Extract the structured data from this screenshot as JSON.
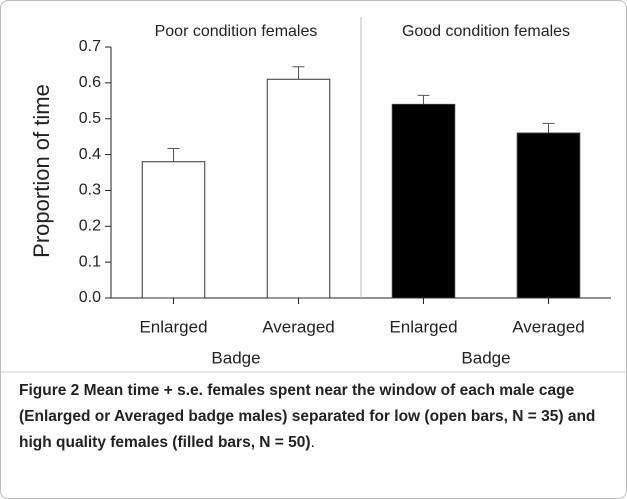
{
  "chart_data": [
    {
      "type": "bar",
      "title": "Poor condition females",
      "xlabel": "Badge",
      "ylabel": "Proportion of time",
      "categories": [
        "Enlarged",
        "Averaged"
      ],
      "values": [
        0.38,
        0.61
      ],
      "errors": [
        0.037,
        0.035
      ],
      "color": "#ffffff",
      "ylim": [
        0,
        0.7
      ],
      "yticks": [
        {
          "value": 0,
          "label": "0.0"
        },
        0.1,
        0.2,
        0.3,
        0.4,
        0.5,
        0.6,
        0.7
      ]
    },
    {
      "type": "bar",
      "title": "Good condition females",
      "xlabel": "Badge",
      "categories": [
        "Enlarged",
        "Averaged"
      ],
      "values": [
        0.54,
        0.46
      ],
      "errors": [
        0.025,
        0.027
      ],
      "color": "#000000"
    }
  ],
  "caption": {
    "label": "Figure 2",
    "text": "Mean time + s.e. females spent near the window of each male cage (Enlarged or Averaged badge males) separated for low (open bars, N = 35) and high quality females (filled bars, N = 50)",
    "end": "."
  }
}
